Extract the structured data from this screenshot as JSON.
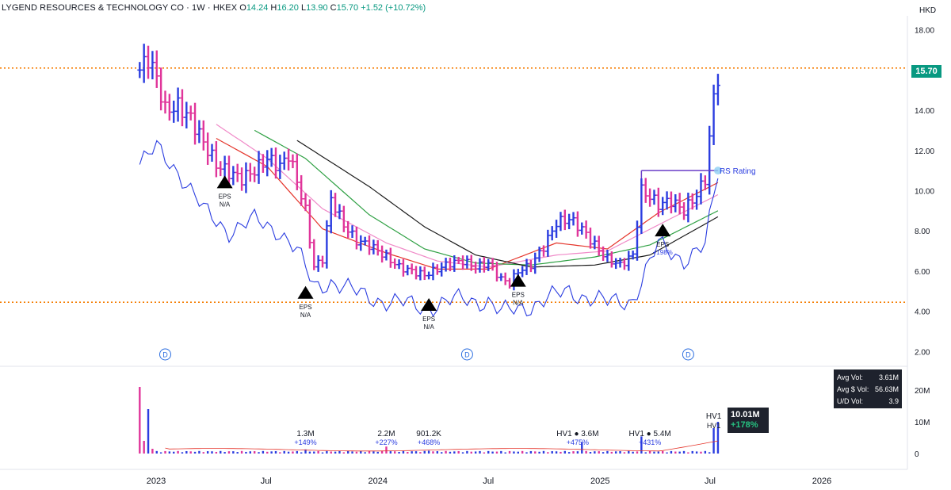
{
  "header": {
    "symbol": "LYGEND RESOURCES & TECHNOLOGY CO · 1W · HKEX",
    "open_label": "O",
    "open": "14.24",
    "high_label": "H",
    "high": "16.20",
    "low_label": "L",
    "low": "13.90",
    "close_label": "C",
    "close": "15.70",
    "change": "+1.52 (+10.72%)"
  },
  "price_tag": "15.70",
  "stats": {
    "avg_vol_label": "Avg Vol:",
    "avg_vol": "3.61M",
    "avg_dollar_vol_label": "Avg $ Vol:",
    "avg_dollar_vol": "56.63M",
    "ud_vol_label": "U/D Vol:",
    "ud_vol": "3.9"
  },
  "volume_tag": {
    "value": "10.01M",
    "pct": "+178%"
  },
  "colors": {
    "up_bar": "#2b3de0",
    "down_bar": "#e0359a",
    "rs_line": "#2b3de0",
    "ma_red": "#e5352b",
    "ma_pink": "#f08ac8",
    "ma_green": "#2ea043",
    "ma_black": "#1a1a1a",
    "dotted": "#f57c00",
    "accent": "#089981"
  },
  "chart_data": {
    "type": "bar",
    "subtype": "ohlc-weekly",
    "title": "LYGEND RESOURCES & TECHNOLOGY CO · 1W · HKEX",
    "currency_label": "HKD",
    "y_ticks": [
      "18.00",
      "16.00",
      "14.00",
      "12.00",
      "10.00",
      "8.00",
      "6.00",
      "4.00",
      "2.00"
    ],
    "ylim": [
      1.5,
      18.3
    ],
    "x_ticks": [
      "2023",
      "Jul",
      "2024",
      "Jul",
      "2025",
      "Jul",
      "2026"
    ],
    "x_tick_dates": [
      "2023-01-01",
      "2023-07-01",
      "2024-01-01",
      "2024-07-01",
      "2025-01-01",
      "2025-07-01",
      "2026-01-01"
    ],
    "dotted_levels": [
      16.1,
      4.45
    ],
    "price_keypoints": [
      [
        "2022-12-05",
        16.0
      ],
      [
        "2022-12-19",
        16.6
      ],
      [
        "2023-01-02",
        15.6
      ],
      [
        "2023-01-16",
        14.0
      ],
      [
        "2023-02-06",
        14.2
      ],
      [
        "2023-02-27",
        13.6
      ],
      [
        "2023-03-20",
        12.4
      ],
      [
        "2023-04-10",
        11.3
      ],
      [
        "2023-05-01",
        10.9
      ],
      [
        "2023-05-22",
        10.6
      ],
      [
        "2023-06-12",
        11.0
      ],
      [
        "2023-07-03",
        11.6
      ],
      [
        "2023-07-24",
        11.2
      ],
      [
        "2023-08-07",
        11.8
      ],
      [
        "2023-08-21",
        10.5
      ],
      [
        "2023-09-04",
        9.0
      ],
      [
        "2023-09-18",
        6.2
      ],
      [
        "2023-10-02",
        6.6
      ],
      [
        "2023-10-16",
        9.6
      ],
      [
        "2023-11-06",
        8.3
      ],
      [
        "2023-11-27",
        7.5
      ],
      [
        "2023-12-18",
        7.3
      ],
      [
        "2024-01-15",
        6.7
      ],
      [
        "2024-02-05",
        6.2
      ],
      [
        "2024-02-26",
        6.0
      ],
      [
        "2024-03-18",
        5.8
      ],
      [
        "2024-04-08",
        6.1
      ],
      [
        "2024-04-29",
        6.4
      ],
      [
        "2024-05-20",
        6.5
      ],
      [
        "2024-06-10",
        6.2
      ],
      [
        "2024-07-01",
        6.4
      ],
      [
        "2024-07-22",
        5.6
      ],
      [
        "2024-08-05",
        5.4
      ],
      [
        "2024-08-19",
        6.0
      ],
      [
        "2024-09-09",
        6.3
      ],
      [
        "2024-09-30",
        7.2
      ],
      [
        "2024-10-21",
        8.4
      ],
      [
        "2024-11-11",
        8.6
      ],
      [
        "2024-12-02",
        8.1
      ],
      [
        "2024-12-23",
        7.3
      ],
      [
        "2025-01-13",
        6.6
      ],
      [
        "2025-02-03",
        6.3
      ],
      [
        "2025-02-24",
        6.8
      ],
      [
        "2025-03-10",
        10.0
      ],
      [
        "2025-03-24",
        9.7
      ],
      [
        "2025-04-07",
        9.3
      ],
      [
        "2025-04-28",
        9.5
      ],
      [
        "2025-05-19",
        9.0
      ],
      [
        "2025-06-09",
        9.8
      ],
      [
        "2025-06-23",
        10.6
      ],
      [
        "2025-07-07",
        14.6
      ],
      [
        "2025-07-14",
        15.7
      ]
    ],
    "rs_line_keypoints": [
      [
        "2022-12-05",
        11.3
      ],
      [
        "2023-01-02",
        12.1
      ],
      [
        "2023-02-06",
        11.0
      ],
      [
        "2023-03-20",
        9.0
      ],
      [
        "2023-05-01",
        8.0
      ],
      [
        "2023-06-12",
        8.5
      ],
      [
        "2023-07-24",
        8.0
      ],
      [
        "2023-08-21",
        7.0
      ],
      [
        "2023-09-18",
        5.2
      ],
      [
        "2023-10-16",
        5.5
      ],
      [
        "2023-11-27",
        4.9
      ],
      [
        "2024-01-15",
        4.5
      ],
      [
        "2024-03-18",
        4.2
      ],
      [
        "2024-05-20",
        4.6
      ],
      [
        "2024-07-01",
        4.5
      ],
      [
        "2024-07-22",
        3.9
      ],
      [
        "2024-09-09",
        4.3
      ],
      [
        "2024-11-11",
        5.0
      ],
      [
        "2025-01-13",
        4.4
      ],
      [
        "2025-02-24",
        4.6
      ],
      [
        "2025-04-07",
        7.3
      ],
      [
        "2025-05-19",
        6.6
      ],
      [
        "2025-06-23",
        7.2
      ],
      [
        "2025-07-14",
        10.9
      ]
    ],
    "moving_averages": [
      {
        "name": "",
        "color": "#e5352b",
        "points": [
          [
            "2023-04-10",
            12.6
          ],
          [
            "2023-07-03",
            11.2
          ],
          [
            "2023-10-02",
            8.1
          ],
          [
            "2024-01-15",
            6.9
          ],
          [
            "2024-04-08",
            6.1
          ],
          [
            "2024-07-01",
            6.1
          ],
          [
            "2024-10-21",
            7.4
          ],
          [
            "2025-01-13",
            7.1
          ],
          [
            "2025-04-07",
            8.9
          ],
          [
            "2025-07-14",
            10.4
          ]
        ]
      },
      {
        "name": "",
        "color": "#f08ac8",
        "points": [
          [
            "2023-04-10",
            13.3
          ],
          [
            "2023-07-03",
            11.6
          ],
          [
            "2023-10-02",
            9.1
          ],
          [
            "2024-01-15",
            7.4
          ],
          [
            "2024-04-08",
            6.5
          ],
          [
            "2024-07-01",
            6.2
          ],
          [
            "2024-10-21",
            6.8
          ],
          [
            "2025-01-13",
            7.0
          ],
          [
            "2025-04-07",
            8.3
          ],
          [
            "2025-07-14",
            9.8
          ]
        ]
      },
      {
        "name": "",
        "color": "#2ea043",
        "points": [
          [
            "2023-06-12",
            13.0
          ],
          [
            "2023-09-04",
            11.6
          ],
          [
            "2023-12-18",
            8.8
          ],
          [
            "2024-03-18",
            7.1
          ],
          [
            "2024-06-10",
            6.4
          ],
          [
            "2024-09-09",
            6.3
          ],
          [
            "2024-12-23",
            6.7
          ],
          [
            "2025-03-24",
            7.3
          ],
          [
            "2025-07-14",
            9.0
          ]
        ]
      },
      {
        "name": "",
        "color": "#1a1a1a",
        "points": [
          [
            "2023-08-21",
            12.5
          ],
          [
            "2023-12-18",
            10.2
          ],
          [
            "2024-03-18",
            8.2
          ],
          [
            "2024-06-10",
            6.8
          ],
          [
            "2024-09-09",
            6.2
          ],
          [
            "2024-12-23",
            6.3
          ],
          [
            "2025-03-24",
            6.8
          ],
          [
            "2025-07-14",
            8.7
          ]
        ]
      }
    ],
    "rs_rating": {
      "label": "RS Rating",
      "box_start": "2025-03-10",
      "box_end": "2025-07-14",
      "value": 11.0
    },
    "eps_markers": [
      {
        "date": "2023-04-24",
        "price": 10.4,
        "label": "EPS",
        "sub": "N/A"
      },
      {
        "date": "2023-09-04",
        "price": 4.9,
        "label": "EPS",
        "sub": "N/A"
      },
      {
        "date": "2024-03-25",
        "price": 4.3,
        "label": "EPS",
        "sub": "N/A"
      },
      {
        "date": "2024-08-19",
        "price": 5.5,
        "label": "EPS",
        "sub": "N/A"
      },
      {
        "date": "2025-04-14",
        "price": 8.0,
        "label": "EPS",
        "sub": "+198%"
      }
    ],
    "dividend_markers": [
      {
        "date": "2023-01-16",
        "label": "D"
      },
      {
        "date": "2024-05-27",
        "label": "D"
      },
      {
        "date": "2025-05-26",
        "label": "D"
      }
    ],
    "volume": {
      "y_ticks": [
        "20M",
        "10M",
        "0"
      ],
      "ylim": [
        0,
        23
      ],
      "spikes": [
        [
          "2022-12-05",
          21.0,
          "down"
        ],
        [
          "2022-12-12",
          4.0,
          "down"
        ],
        [
          "2022-12-19",
          14.0,
          "up"
        ],
        [
          "2022-12-26",
          1.5,
          "down"
        ],
        [
          "2023-09-04",
          1.3,
          "up"
        ],
        [
          "2024-01-15",
          2.2,
          "down"
        ],
        [
          "2024-03-25",
          0.9,
          "up"
        ],
        [
          "2024-12-02",
          3.6,
          "up"
        ],
        [
          "2025-03-10",
          5.4,
          "up"
        ],
        [
          "2025-07-07",
          8.0,
          "up"
        ],
        [
          "2025-07-14",
          10.0,
          "up"
        ]
      ],
      "annotations": [
        {
          "date": "2023-09-04",
          "line1": "1.3M",
          "line2": "+149%"
        },
        {
          "date": "2024-01-15",
          "line1": "2.2M",
          "line2": "+227%"
        },
        {
          "date": "2024-03-25",
          "line1": "901.2K",
          "line2": "+468%"
        },
        {
          "date": "2024-11-25",
          "line1": "HV1 ● 3.6M",
          "line2": "+475%"
        },
        {
          "date": "2025-03-24",
          "line1": "HV1 ● 5.4M",
          "line2": "+431%"
        },
        {
          "date": "2025-07-07",
          "line1": "HV1",
          "line2": "HV1"
        }
      ]
    }
  }
}
